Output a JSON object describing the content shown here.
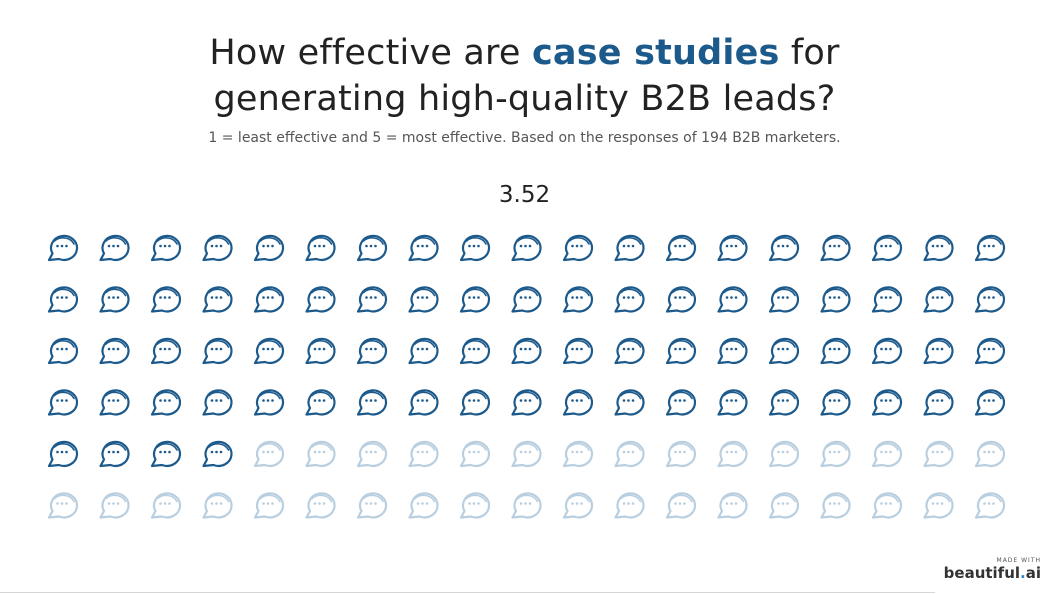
{
  "title": {
    "before": "How effective are ",
    "highlight": "case studies",
    "after": " for",
    "line2": "generating high-quality B2B leads?"
  },
  "subtitle": "1 = least effective and 5 = most effective. Based on the responses of 194 B2B marketers.",
  "value_label": "3.52",
  "chart_data": {
    "type": "pictograph",
    "icon": "speech-bubble-icon",
    "total_icons": 114,
    "filled_icons": 80,
    "value": 3.52,
    "max": 5,
    "rows": 6,
    "columns": 19,
    "filled_color": "#1d5a8c",
    "empty_color": "#b9cfe0"
  },
  "brand": {
    "made_with": "MADE WITH",
    "name": "beautiful",
    "dot": ".",
    "suffix": "ai"
  }
}
